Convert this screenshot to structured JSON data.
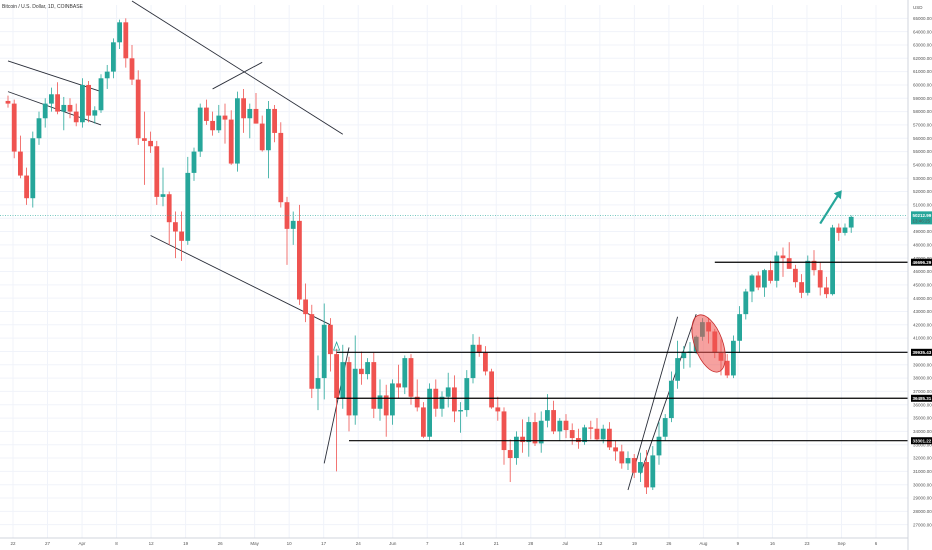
{
  "chart_data": {
    "type": "candlestick",
    "title": "Bitcoin / U.S. Dollar, 1D, COINBASE",
    "grid": true,
    "ylim": [
      26000,
      66000
    ],
    "y_ticks": [
      27000,
      28000,
      29000,
      30000,
      31000,
      32000,
      33000,
      34000,
      35000,
      36000,
      37000,
      38000,
      39000,
      40000,
      41000,
      42000,
      43000,
      44000,
      45000,
      46000,
      47000,
      48000,
      49000,
      50000,
      51000,
      52000,
      53000,
      54000,
      55000,
      56000,
      57000,
      58000,
      59000,
      60000,
      61000,
      62000,
      63000,
      64000,
      65000
    ],
    "x_ticks": [
      "22",
      "27",
      "Apr",
      "8",
      "12",
      "19",
      "26",
      "May",
      "10",
      "17",
      "24",
      "Jun",
      "7",
      "14",
      "21",
      "28",
      "Jul",
      "12",
      "19",
      "26",
      "Aug",
      "9",
      "16",
      "23",
      "Sep",
      "6"
    ],
    "top_right_label": "USD",
    "colors": {
      "up": "#26a69a",
      "down": "#ef5350",
      "line": "#000000",
      "current_price": "#26a69a",
      "arrow": "#26a69a",
      "highlight": "#ef5350"
    },
    "candles": [
      [
        58800,
        59200,
        58300,
        58600
      ],
      [
        58600,
        58900,
        54500,
        55000
      ],
      [
        55000,
        56200,
        53000,
        53200
      ],
      [
        53200,
        53800,
        51000,
        51500
      ],
      [
        51500,
        56500,
        50800,
        56000
      ],
      [
        56000,
        58000,
        55500,
        57500
      ],
      [
        57500,
        59000,
        56800,
        58600
      ],
      [
        58600,
        59800,
        58000,
        59300
      ],
      [
        59300,
        60200,
        57800,
        58000
      ],
      [
        58000,
        59100,
        56600,
        58500
      ],
      [
        58500,
        59000,
        57500,
        58000
      ],
      [
        58000,
        58600,
        56900,
        57200
      ],
      [
        57200,
        60500,
        56800,
        60000
      ],
      [
        60000,
        60300,
        57200,
        57700
      ],
      [
        57700,
        58400,
        57100,
        58100
      ],
      [
        58100,
        60800,
        57900,
        60500
      ],
      [
        60500,
        61500,
        59700,
        61000
      ],
      [
        61000,
        63500,
        60500,
        63200
      ],
      [
        63200,
        64900,
        62700,
        64700
      ],
      [
        64700,
        65000,
        61300,
        62000
      ],
      [
        62000,
        63000,
        60000,
        60400
      ],
      [
        60400,
        61100,
        55500,
        56000
      ],
      [
        56000,
        58000,
        52500,
        55800
      ],
      [
        55800,
        56500,
        54900,
        55400
      ],
      [
        55400,
        55800,
        51000,
        51600
      ],
      [
        51600,
        53800,
        50900,
        51800
      ],
      [
        51800,
        52000,
        48000,
        49700
      ],
      [
        49700,
        50500,
        47000,
        49000
      ],
      [
        49000,
        50500,
        46800,
        48300
      ],
      [
        48300,
        54600,
        48000,
        53400
      ],
      [
        53400,
        55300,
        52800,
        55000
      ],
      [
        55000,
        58600,
        54600,
        58300
      ],
      [
        58300,
        58900,
        57000,
        57300
      ],
      [
        57300,
        58000,
        56200,
        56600
      ],
      [
        56600,
        58500,
        56400,
        57700
      ],
      [
        57700,
        58600,
        55600,
        57400
      ],
      [
        57400,
        58100,
        54000,
        54100
      ],
      [
        54100,
        59500,
        53500,
        59000
      ],
      [
        59000,
        59700,
        56400,
        57500
      ],
      [
        57500,
        58600,
        56000,
        58200
      ],
      [
        58200,
        59400,
        57100,
        57100
      ],
      [
        57100,
        57700,
        55000,
        55100
      ],
      [
        55100,
        58800,
        53000,
        58200
      ],
      [
        58200,
        58500,
        55700,
        56400
      ],
      [
        56400,
        57200,
        50800,
        51200
      ],
      [
        51200,
        51600,
        46500,
        49200
      ],
      [
        49200,
        50500,
        48000,
        49800
      ],
      [
        49800,
        51000,
        43500,
        43900
      ],
      [
        43900,
        45100,
        42200,
        42800
      ],
      [
        42800,
        43500,
        36500,
        37200
      ],
      [
        37200,
        39700,
        35600,
        38000
      ],
      [
        38000,
        43600,
        36400,
        42000
      ],
      [
        42000,
        42500,
        38500,
        39800
      ],
      [
        39800,
        40200,
        31000,
        36500
      ],
      [
        36500,
        40500,
        35700,
        39200
      ],
      [
        39200,
        39600,
        34000,
        35200
      ],
      [
        35200,
        41200,
        34500,
        38700
      ],
      [
        38700,
        40000,
        37500,
        38300
      ],
      [
        38300,
        39500,
        37900,
        39200
      ],
      [
        39200,
        39900,
        35000,
        35700
      ],
      [
        35700,
        37900,
        34800,
        36700
      ],
      [
        36700,
        37500,
        33600,
        35200
      ],
      [
        35200,
        37900,
        34500,
        37600
      ],
      [
        37600,
        39000,
        36500,
        37300
      ],
      [
        37300,
        39700,
        36800,
        39500
      ],
      [
        39500,
        39800,
        36000,
        36600
      ],
      [
        36600,
        37900,
        35500,
        35800
      ],
      [
        35800,
        36200,
        33500,
        33600
      ],
      [
        33600,
        37600,
        33300,
        37200
      ],
      [
        37200,
        37900,
        35100,
        35700
      ],
      [
        35700,
        37000,
        35100,
        36600
      ],
      [
        36600,
        38400,
        35800,
        37300
      ],
      [
        37300,
        38200,
        34700,
        35500
      ],
      [
        35500,
        36200,
        33900,
        35600
      ],
      [
        35600,
        38600,
        35100,
        38000
      ],
      [
        38000,
        41300,
        37600,
        40500
      ],
      [
        40500,
        41100,
        39600,
        39900
      ],
      [
        39900,
        40400,
        38200,
        38500
      ],
      [
        38500,
        38700,
        35700,
        35800
      ],
      [
        35800,
        36600,
        34800,
        35500
      ],
      [
        35500,
        35800,
        31500,
        32600
      ],
      [
        32600,
        33400,
        30200,
        32000
      ],
      [
        32000,
        34000,
        31500,
        33600
      ],
      [
        33600,
        34900,
        32400,
        33200
      ],
      [
        33200,
        35100,
        32100,
        34700
      ],
      [
        34700,
        35400,
        32900,
        33100
      ],
      [
        33100,
        35500,
        32400,
        34800
      ],
      [
        34800,
        36800,
        34300,
        35600
      ],
      [
        35600,
        36300,
        33800,
        34000
      ],
      [
        34000,
        35000,
        33300,
        34800
      ],
      [
        34800,
        35300,
        33500,
        34100
      ],
      [
        34100,
        34600,
        33000,
        33500
      ],
      [
        33500,
        34200,
        32700,
        33200
      ],
      [
        33200,
        34500,
        33000,
        34300
      ],
      [
        34300,
        34800,
        33400,
        34200
      ],
      [
        34200,
        35000,
        33300,
        33400
      ],
      [
        33400,
        34500,
        33100,
        34200
      ],
      [
        34200,
        34700,
        32600,
        32800
      ],
      [
        32800,
        33300,
        31800,
        32500
      ],
      [
        32500,
        33000,
        31200,
        31600
      ],
      [
        31600,
        32500,
        31100,
        32000
      ],
      [
        32000,
        32300,
        30500,
        30900
      ],
      [
        30900,
        32400,
        30200,
        31700
      ],
      [
        31700,
        32600,
        29300,
        29800
      ],
      [
        29800,
        32900,
        29600,
        32200
      ],
      [
        32200,
        34700,
        31500,
        33600
      ],
      [
        33600,
        35300,
        33300,
        35000
      ],
      [
        35000,
        38500,
        34700,
        37800
      ],
      [
        37800,
        40800,
        37200,
        39500
      ],
      [
        39500,
        40400,
        38700,
        39900
      ],
      [
        39900,
        40700,
        38800,
        40000
      ],
      [
        40000,
        41200,
        39800,
        41100
      ],
      [
        41100,
        42500,
        40800,
        42200
      ],
      [
        42200,
        42500,
        40600,
        41500
      ],
      [
        41500,
        41700,
        39500,
        39900
      ],
      [
        39900,
        40900,
        38200,
        39300
      ],
      [
        39300,
        39800,
        38000,
        38200
      ],
      [
        38200,
        41200,
        38000,
        40800
      ],
      [
        40800,
        43400,
        39900,
        42800
      ],
      [
        42800,
        44700,
        42400,
        44500
      ],
      [
        44500,
        45800,
        43700,
        45700
      ],
      [
        45700,
        46000,
        44600,
        44800
      ],
      [
        44800,
        46200,
        44100,
        46100
      ],
      [
        46100,
        46800,
        45100,
        45300
      ],
      [
        45300,
        47500,
        44800,
        47200
      ],
      [
        47200,
        47800,
        45600,
        47000
      ],
      [
        47000,
        48200,
        46200,
        46200
      ],
      [
        46200,
        46500,
        44800,
        45200
      ],
      [
        45200,
        45800,
        44000,
        44400
      ],
      [
        44400,
        47200,
        44200,
        46800
      ],
      [
        46800,
        47600,
        45700,
        46100
      ],
      [
        46100,
        46700,
        44200,
        44800
      ],
      [
        44800,
        45600,
        44000,
        44300
      ],
      [
        44300,
        49500,
        44200,
        49300
      ],
      [
        49300,
        49600,
        48300,
        48900
      ],
      [
        48900,
        49600,
        48700,
        49300
      ],
      [
        49300,
        50200,
        48900,
        50100
      ]
    ],
    "horizontal_levels": [
      {
        "value": 46696.29,
        "label": "46696.29"
      },
      {
        "value": 39935.43,
        "label": "39935.43"
      },
      {
        "value": 36485.31,
        "label": "36485.31"
      },
      {
        "value": 33301.22,
        "label": "33301.22"
      }
    ],
    "current_price": {
      "value": 50212.99,
      "label": "50212.99",
      "sub_label": "13:46:25"
    },
    "trendlines": [
      {
        "from": [
          0,
          61800
        ],
        "to": [
          15,
          59500
        ]
      },
      {
        "from": [
          0,
          59500
        ],
        "to": [
          15,
          57000
        ]
      },
      {
        "from": [
          20,
          66300
        ],
        "to": [
          54,
          56300
        ]
      },
      {
        "from": [
          23,
          48700
        ],
        "to": [
          52,
          42000
        ]
      },
      {
        "from": [
          33,
          59700
        ],
        "to": [
          41,
          61700
        ]
      },
      {
        "from": [
          51,
          31600
        ],
        "to": [
          55,
          40300
        ]
      },
      {
        "from": [
          100,
          29600
        ],
        "to": [
          108,
          42600
        ]
      },
      {
        "from": [
          102,
          30800
        ],
        "to": [
          111,
          42800
        ]
      }
    ]
  }
}
